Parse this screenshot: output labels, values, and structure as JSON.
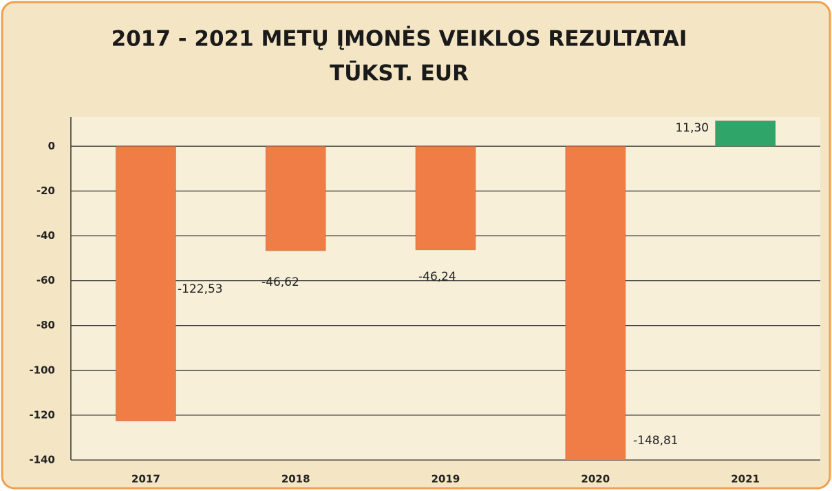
{
  "chart_data": {
    "type": "bar",
    "title": "2017 - 2021 METŲ ĮMONĖS VEIKLOS REZULTATAI",
    "subtitle": "TŪKST. EUR",
    "categories": [
      "2017",
      "2018",
      "2019",
      "2020",
      "2021"
    ],
    "values": [
      -122.53,
      -46.62,
      -46.24,
      -148.81,
      11.3
    ],
    "value_labels": [
      "-122,53",
      "-46,62",
      "-46,24",
      "-148,81",
      "11,30"
    ],
    "colors": [
      "#ef7d45",
      "#ef7d45",
      "#ef7d45",
      "#ef7d45",
      "#2fa56a"
    ],
    "ylim": [
      -140,
      13
    ],
    "yticks": [
      0,
      -20,
      -40,
      -60,
      -80,
      -100,
      -120,
      -140
    ],
    "grid": true
  }
}
